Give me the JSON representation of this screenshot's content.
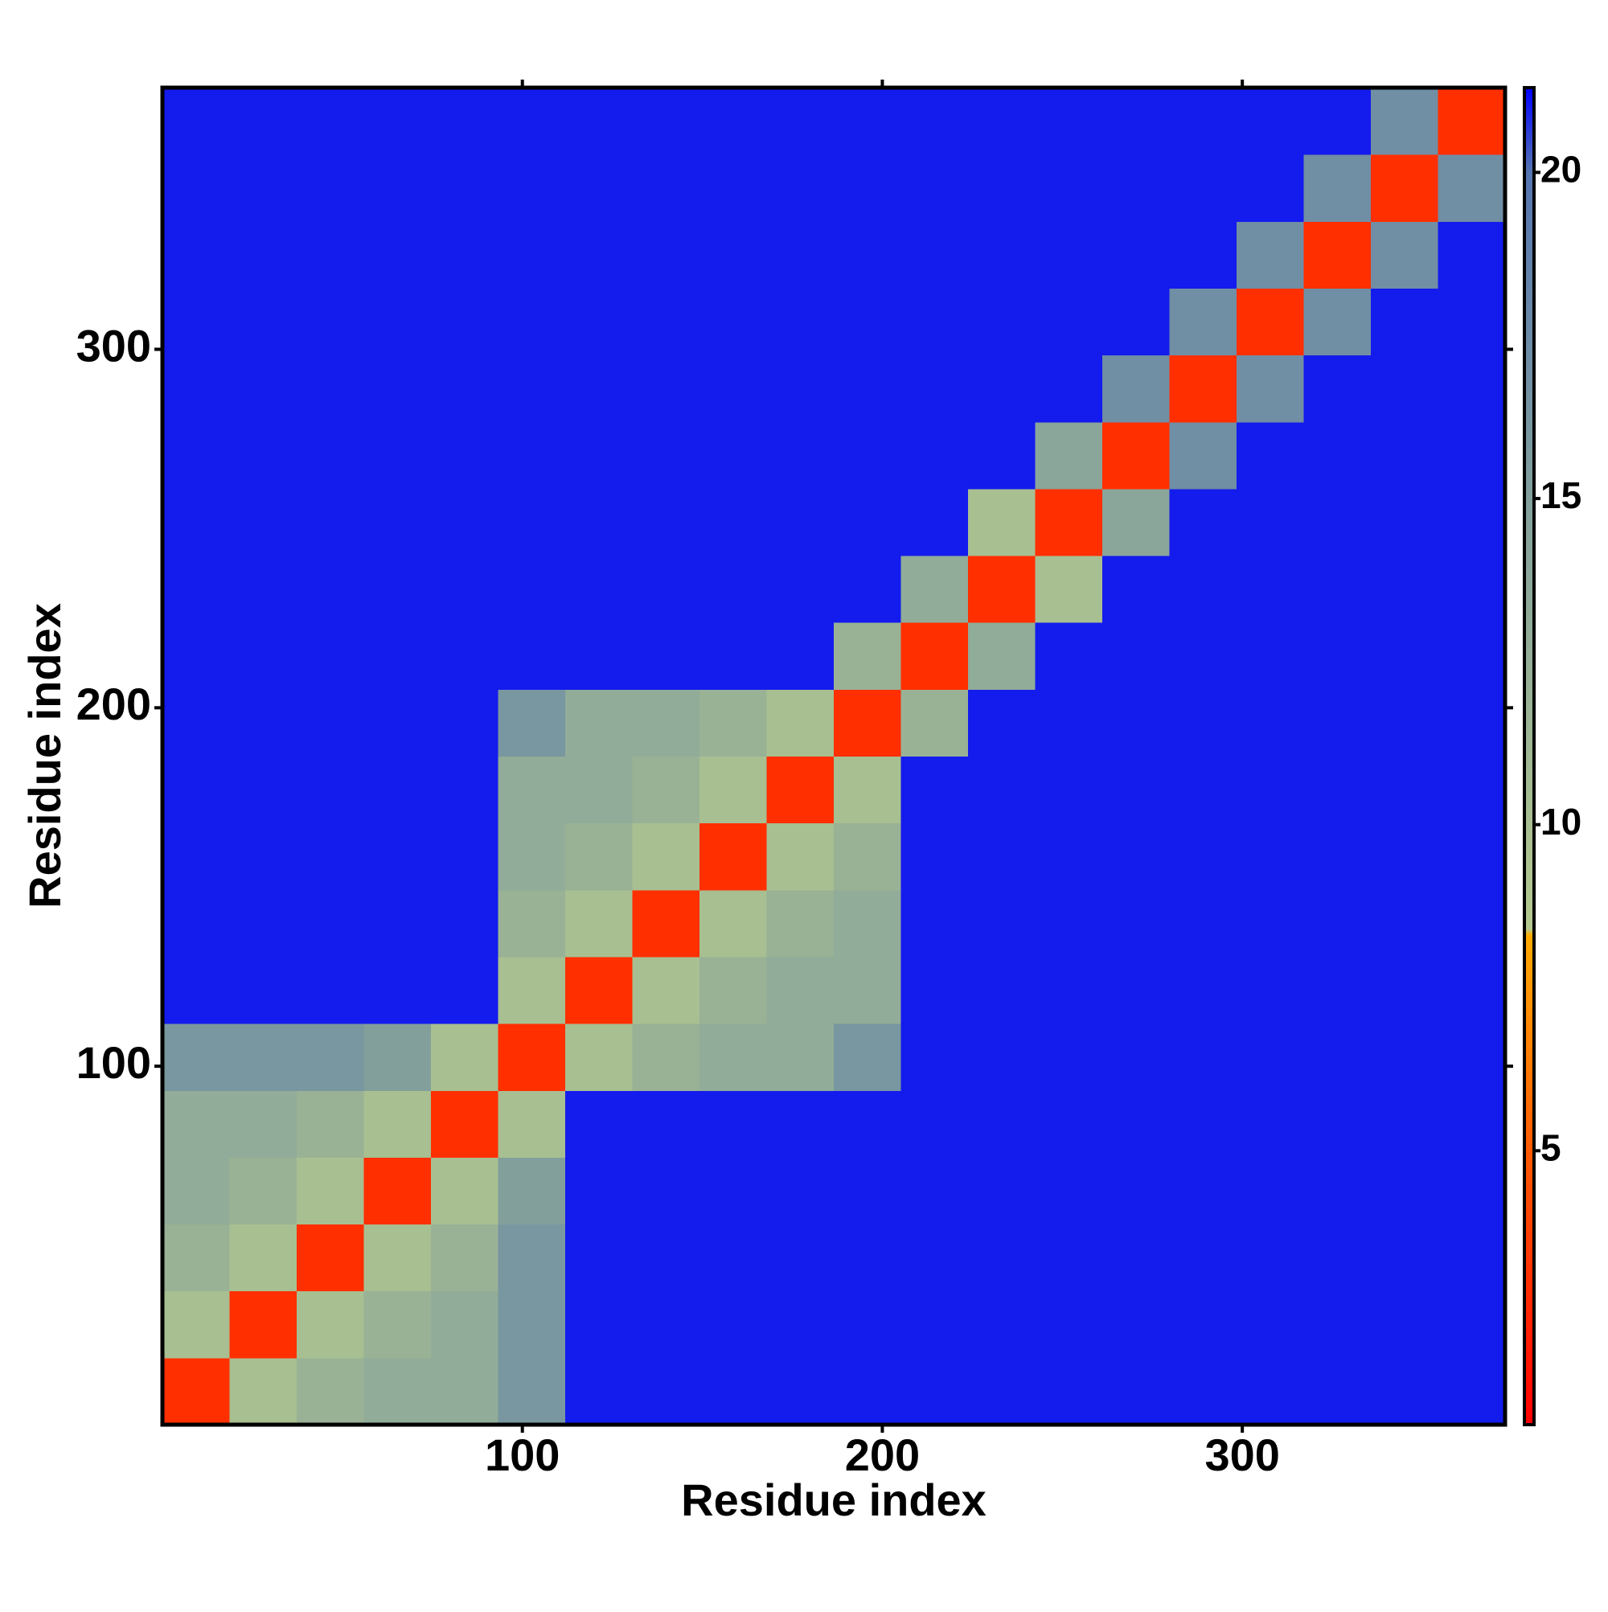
{
  "chart_data": {
    "type": "heatmap",
    "xlabel": "Residue index",
    "ylabel": "Residue index",
    "xlim": [
      0,
      373
    ],
    "ylim": [
      0,
      373
    ],
    "xticks": [
      100,
      200,
      300
    ],
    "yticks": [
      100,
      200,
      300
    ],
    "zlim": [
      0.8,
      21.3
    ],
    "zticks": [
      5,
      10,
      15,
      20
    ],
    "colorscale": [
      [
        0.8,
        "#ff0000"
      ],
      [
        5,
        "#ff5a00"
      ],
      [
        8.3,
        "#ffaa00"
      ],
      [
        8.4,
        "#b4c98e"
      ],
      [
        15,
        "#829f9c"
      ],
      [
        20,
        "#5575b0"
      ],
      [
        21.3,
        "#0000ff"
      ]
    ],
    "z": [
      [
        3,
        10,
        12,
        13,
        13,
        16,
        21,
        21,
        21,
        21,
        21,
        21,
        21,
        21,
        21,
        21,
        21,
        21,
        21,
        21
      ],
      [
        10,
        3,
        10,
        12,
        13,
        16,
        21,
        21,
        21,
        21,
        21,
        21,
        21,
        21,
        21,
        21,
        21,
        21,
        21,
        21
      ],
      [
        12,
        10,
        3,
        10,
        12,
        16,
        21,
        21,
        21,
        21,
        21,
        21,
        21,
        21,
        21,
        21,
        21,
        21,
        21,
        21
      ],
      [
        13,
        12,
        10,
        3,
        10,
        15,
        21,
        21,
        21,
        21,
        21,
        21,
        21,
        21,
        21,
        21,
        21,
        21,
        21,
        21
      ],
      [
        13,
        13,
        12,
        10,
        3,
        10,
        21,
        21,
        21,
        21,
        21,
        21,
        21,
        21,
        21,
        21,
        21,
        21,
        21,
        21
      ],
      [
        16,
        16,
        16,
        15,
        10,
        3,
        10,
        12,
        13,
        13,
        16,
        21,
        21,
        21,
        21,
        21,
        21,
        21,
        21,
        21
      ],
      [
        21,
        21,
        21,
        21,
        21,
        10,
        3,
        10,
        12,
        13,
        13,
        21,
        21,
        21,
        21,
        21,
        21,
        21,
        21,
        21
      ],
      [
        21,
        21,
        21,
        21,
        21,
        12,
        10,
        3,
        10,
        12,
        13,
        21,
        21,
        21,
        21,
        21,
        21,
        21,
        21,
        21
      ],
      [
        21,
        21,
        21,
        21,
        21,
        13,
        12,
        10,
        3,
        10,
        12,
        21,
        21,
        21,
        21,
        21,
        21,
        21,
        21,
        21
      ],
      [
        21,
        21,
        21,
        21,
        21,
        13,
        13,
        12,
        10,
        3,
        10,
        21,
        21,
        21,
        21,
        21,
        21,
        21,
        21,
        21
      ],
      [
        21,
        21,
        21,
        21,
        21,
        16,
        13,
        13,
        12,
        10,
        3,
        12,
        21,
        21,
        21,
        21,
        21,
        21,
        21,
        21
      ],
      [
        21,
        21,
        21,
        21,
        21,
        21,
        21,
        21,
        21,
        21,
        12,
        3,
        13,
        21,
        21,
        21,
        21,
        21,
        21,
        21
      ],
      [
        21,
        21,
        21,
        21,
        21,
        21,
        21,
        21,
        21,
        21,
        21,
        13,
        3,
        10,
        21,
        21,
        21,
        21,
        21,
        21
      ],
      [
        21,
        21,
        21,
        21,
        21,
        21,
        21,
        21,
        21,
        21,
        21,
        21,
        10,
        3,
        14,
        21,
        21,
        21,
        21,
        21
      ],
      [
        21,
        21,
        21,
        21,
        21,
        21,
        21,
        21,
        21,
        21,
        21,
        21,
        21,
        14,
        3,
        17,
        21,
        21,
        21,
        21
      ],
      [
        21,
        21,
        21,
        21,
        21,
        21,
        21,
        21,
        21,
        21,
        21,
        21,
        21,
        21,
        17,
        3,
        17,
        21,
        21,
        21
      ],
      [
        21,
        21,
        21,
        21,
        21,
        21,
        21,
        21,
        21,
        21,
        21,
        21,
        21,
        21,
        21,
        17,
        3,
        17,
        21,
        21
      ],
      [
        21,
        21,
        21,
        21,
        21,
        21,
        21,
        21,
        21,
        21,
        21,
        21,
        21,
        21,
        21,
        21,
        17,
        3,
        17,
        21
      ],
      [
        21,
        21,
        21,
        21,
        21,
        21,
        21,
        21,
        21,
        21,
        21,
        21,
        21,
        21,
        21,
        21,
        21,
        17,
        3,
        17
      ],
      [
        21,
        21,
        21,
        21,
        21,
        21,
        21,
        21,
        21,
        21,
        21,
        21,
        21,
        21,
        21,
        21,
        21,
        21,
        17,
        3
      ]
    ]
  }
}
